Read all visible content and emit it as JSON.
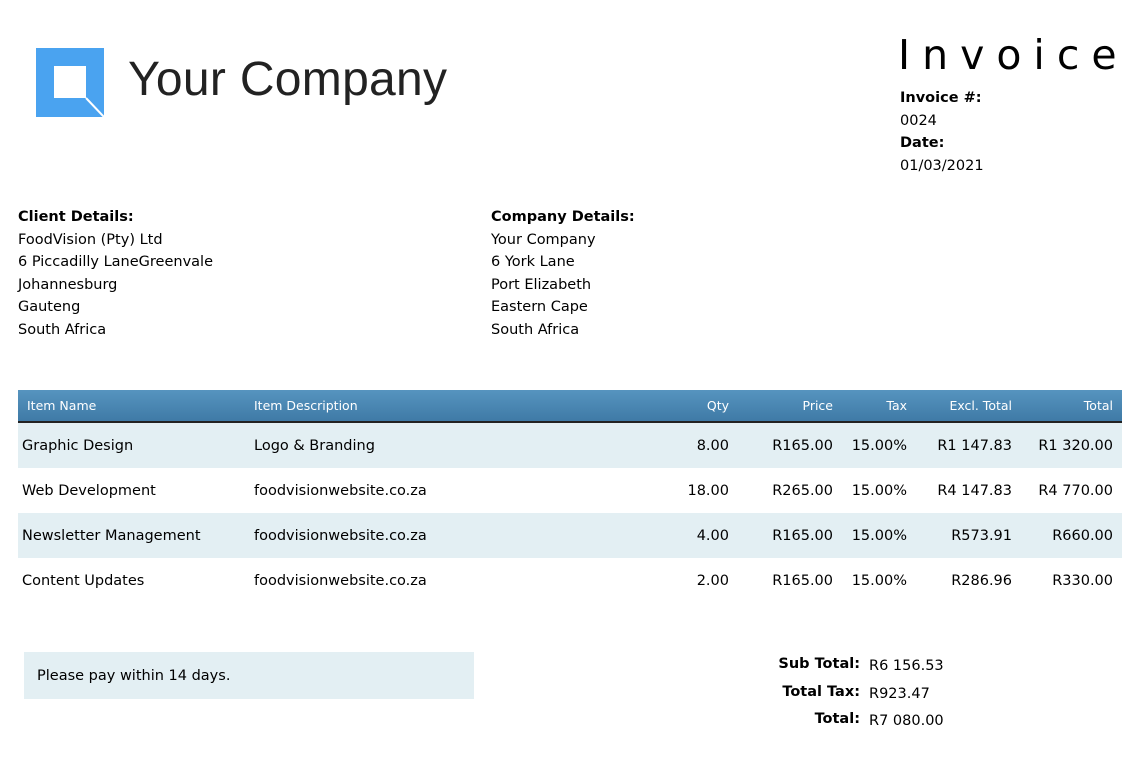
{
  "logo": {
    "company_name": "Your Company",
    "color": "#4aa3f0"
  },
  "header": {
    "title": "Invoice",
    "invoice_no_label": "Invoice #:",
    "invoice_no": "0024",
    "date_label": "Date:",
    "date": "01/03/2021"
  },
  "client": {
    "label": "Client Details:",
    "lines": [
      "FoodVision (Pty) Ltd",
      "6 Piccadilly LaneGreenvale",
      "Johannesburg",
      "Gauteng",
      "South Africa"
    ]
  },
  "company": {
    "label": "Company Details:",
    "lines": [
      "Your Company",
      "6 York Lane",
      "Port Elizabeth",
      "Eastern Cape",
      "South Africa"
    ]
  },
  "table": {
    "headers": [
      "Item Name",
      "Item Description",
      "Qty",
      "Price",
      "Tax",
      "Excl. Total",
      "Total"
    ],
    "rows": [
      [
        "Graphic Design",
        "Logo & Branding",
        "8.00",
        "R165.00",
        "15.00%",
        "R1 147.83",
        "R1 320.00"
      ],
      [
        "Web Development",
        "foodvisionwebsite.co.za",
        "18.00",
        "R265.00",
        "15.00%",
        "R4 147.83",
        "R4 770.00"
      ],
      [
        "Newsletter Management",
        "foodvisionwebsite.co.za",
        "4.00",
        "R165.00",
        "15.00%",
        "R573.91",
        "R660.00"
      ],
      [
        "Content Updates",
        "foodvisionwebsite.co.za",
        "2.00",
        "R165.00",
        "15.00%",
        "R286.96",
        "R330.00"
      ]
    ]
  },
  "note": "Please pay within 14 days.",
  "totals": {
    "sub_total_label": "Sub Total:",
    "sub_total": "R6 156.53",
    "tax_label": "Total Tax:",
    "tax": "R923.47",
    "total_label": "Total:",
    "total": "R7 080.00"
  }
}
